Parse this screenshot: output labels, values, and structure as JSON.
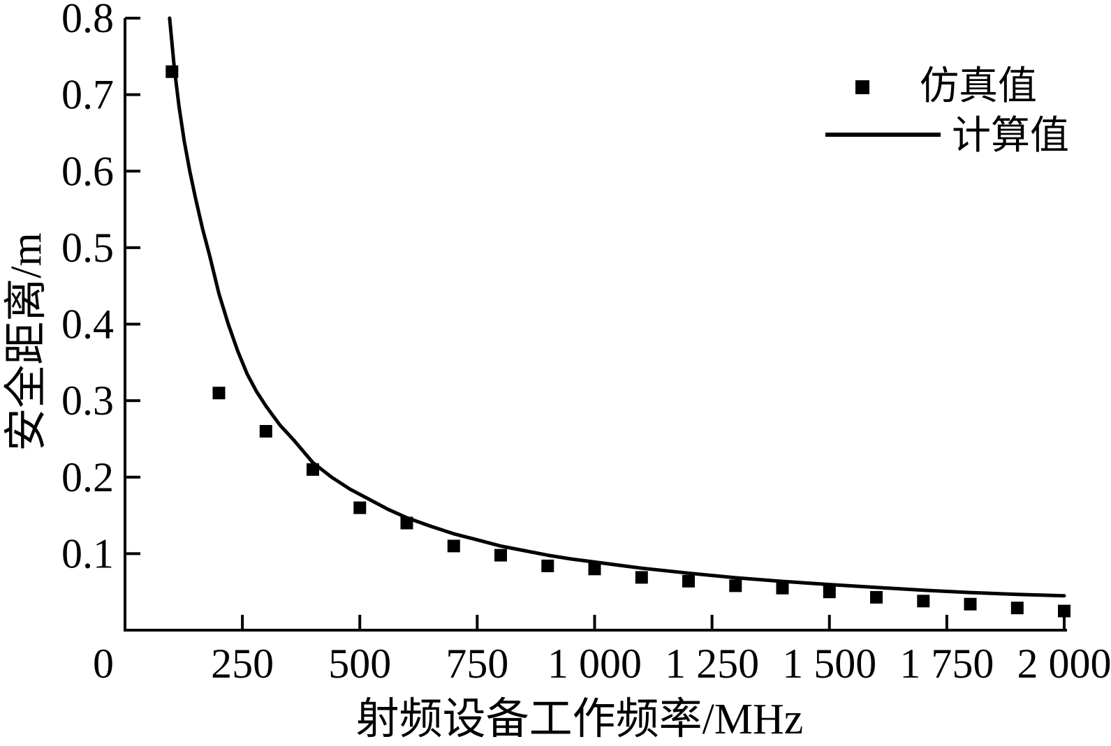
{
  "figure": {
    "background_color": "#ffffff",
    "ink_color": "#000000"
  },
  "chart_data": {
    "type": "scatter",
    "title": "",
    "xlabel": "射频设备工作频率/MHz",
    "ylabel": "安全距离/m",
    "xlim": [
      0,
      2000
    ],
    "ylim": [
      0,
      0.8
    ],
    "grid": false,
    "legend_position": "upper right",
    "x_ticks": [
      0,
      250,
      500,
      750,
      1000,
      1250,
      1500,
      1750,
      2000
    ],
    "x_tick_labels": [
      "0",
      "250",
      "500",
      "750",
      "1 000",
      "1 250",
      "1 500",
      "1 750",
      "2 000"
    ],
    "y_ticks": [
      0.1,
      0.2,
      0.3,
      0.4,
      0.5,
      0.6,
      0.7,
      0.8
    ],
    "y_tick_labels": [
      "0.1",
      "0.2",
      "0.3",
      "0.4",
      "0.5",
      "0.6",
      "0.7",
      "0.8"
    ],
    "series": [
      {
        "name": "仿真值",
        "kind": "scatter",
        "marker": "filled-square",
        "color": "#000000",
        "x": [
          100,
          200,
          300,
          400,
          500,
          600,
          700,
          800,
          900,
          1000,
          1100,
          1200,
          1300,
          1400,
          1500,
          1600,
          1700,
          1800,
          1900,
          2000
        ],
        "y": [
          0.73,
          0.31,
          0.26,
          0.21,
          0.16,
          0.14,
          0.11,
          0.098,
          0.084,
          0.08,
          0.069,
          0.064,
          0.058,
          0.055,
          0.05,
          0.043,
          0.038,
          0.034,
          0.029,
          0.025
        ]
      },
      {
        "name": "计算值",
        "kind": "line",
        "color": "#000000",
        "x": [
          95,
          105,
          115,
          126,
          138,
          150,
          165,
          180,
          200,
          220,
          240,
          260,
          280,
          300,
          330,
          360,
          400,
          440,
          480,
          520,
          560,
          600,
          650,
          700,
          750,
          800,
          850,
          900,
          950,
          1000,
          1100,
          1200,
          1300,
          1400,
          1500,
          1600,
          1700,
          1800,
          1900,
          2000
        ],
        "y": [
          0.8,
          0.735,
          0.685,
          0.64,
          0.6,
          0.565,
          0.525,
          0.49,
          0.44,
          0.4,
          0.365,
          0.335,
          0.312,
          0.293,
          0.268,
          0.248,
          0.219,
          0.2,
          0.184,
          0.171,
          0.158,
          0.147,
          0.136,
          0.126,
          0.118,
          0.11,
          0.104,
          0.098,
          0.093,
          0.089,
          0.081,
          0.0745,
          0.0685,
          0.0638,
          0.0597,
          0.0558,
          0.0523,
          0.0492,
          0.0468,
          0.045
        ]
      }
    ]
  }
}
